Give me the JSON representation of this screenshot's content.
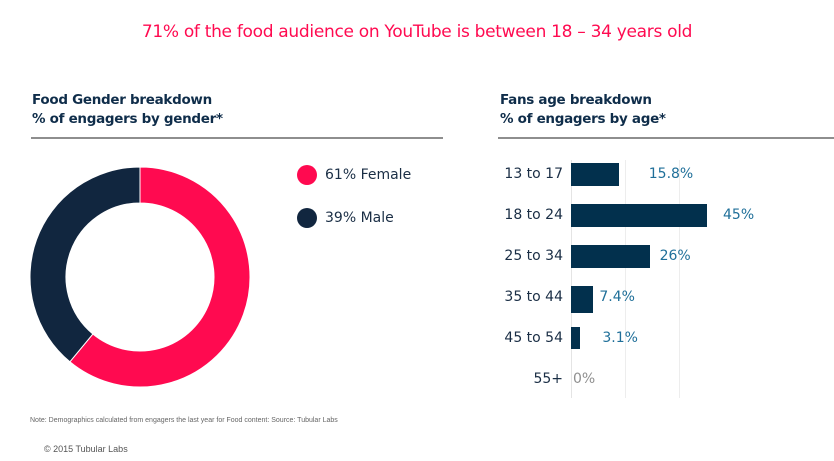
{
  "headline": "71% of the food audience on YouTube is between 18 – 34 years old",
  "colors": {
    "accent": "#ff0a50",
    "navy": "#11263f",
    "bar": "#02304d",
    "value_text": "#1f6f99"
  },
  "gender_panel": {
    "title_line1": "Food Gender breakdown",
    "title_line2": "% of engagers by gender*"
  },
  "age_panel": {
    "title_line1": "Fans age breakdown",
    "title_line2": "% of engagers by age*"
  },
  "chart_data": [
    {
      "type": "pie",
      "variant": "donut",
      "title": "Food Gender breakdown — % of engagers by gender*",
      "categories": [
        "Female",
        "Male"
      ],
      "values": [
        61,
        39
      ],
      "colors": [
        "#ff0a50",
        "#11263f"
      ],
      "legend": [
        {
          "label": "61% Female",
          "color": "#ff0a50"
        },
        {
          "label": "39% Male",
          "color": "#11263f"
        }
      ],
      "legend_placement": "right"
    },
    {
      "type": "bar",
      "orientation": "horizontal",
      "title": "Fans age breakdown — % of engagers by age*",
      "categories": [
        "13 to 17",
        "18 to 24",
        "25 to 34",
        "35 to 44",
        "45 to 54",
        "55+"
      ],
      "values": [
        15.8,
        45,
        26,
        7.4,
        3.1,
        0
      ],
      "value_labels": [
        "15.8%",
        "45%",
        "26%",
        "7.4%",
        "3.1%",
        "0%"
      ],
      "xlim": [
        0,
        60
      ],
      "gridlines_at": [
        0,
        20,
        40
      ],
      "grid": true,
      "xlabel": "",
      "ylabel": ""
    }
  ],
  "footer": {
    "note": "Note: Demographics  calculated  from engagers  the last year for Food content: Source: Tubular  Labs",
    "copyright": "© 2015  Tubular  Labs"
  }
}
